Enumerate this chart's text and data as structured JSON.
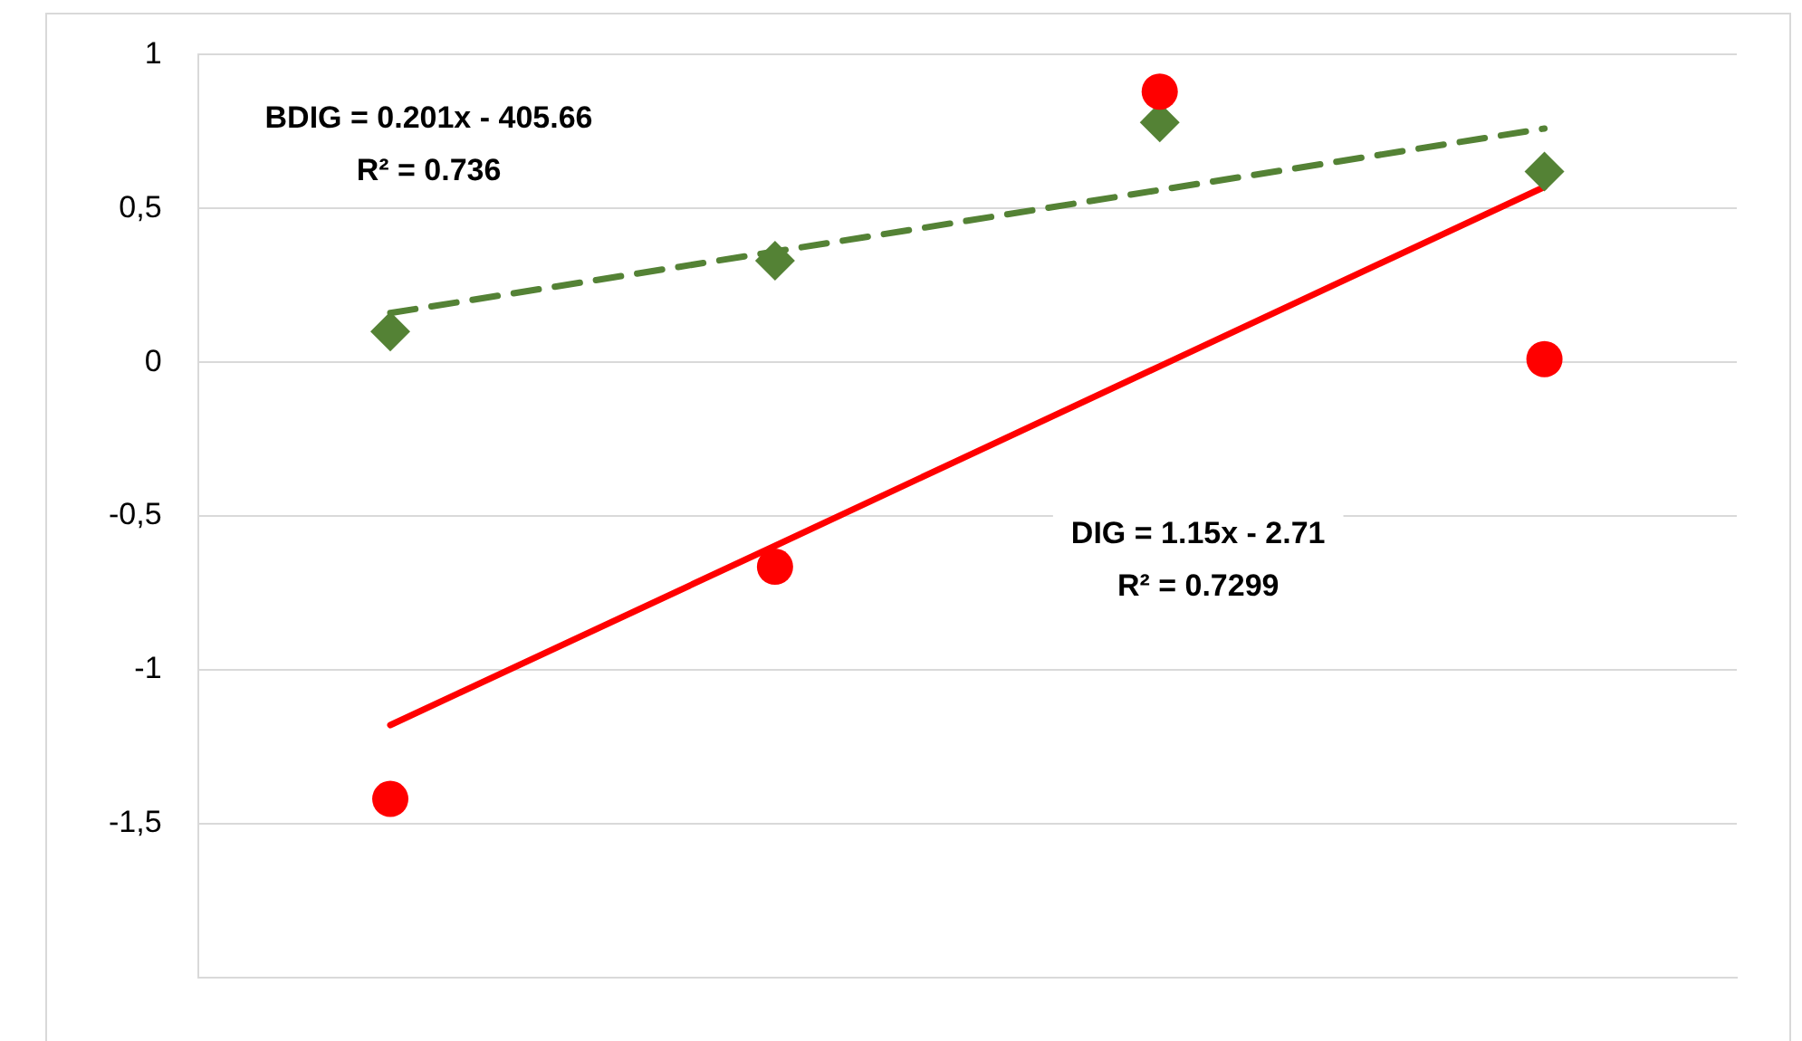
{
  "chart_data": {
    "type": "scatter",
    "categories": [
      null,
      null,
      null,
      null
    ],
    "ylim": [
      -2,
      1
    ],
    "yticks": [
      1,
      {
        "value": 0.5,
        "label": "0,5"
      },
      0,
      {
        "value": -0.5,
        "label": "-0,5"
      },
      -1,
      {
        "value": -1.5,
        "label": "-1,5"
      },
      {
        "value": -2,
        "label": null
      }
    ],
    "grid": "y",
    "legend": false,
    "series": [
      {
        "type": "line",
        "color": "#ff0000",
        "values": [
          -1.18,
          -0.597,
          -0.013,
          0.57
        ],
        "marker": "none",
        "line_style": "solid"
      },
      {
        "type": "line",
        "color": "#548235",
        "values": [
          0.16,
          0.36,
          0.56,
          0.76
        ],
        "marker": "none",
        "line_style": "dashed"
      },
      {
        "type": "scatter",
        "color": "#ff0000",
        "values": [
          -1.42,
          -0.665,
          0.88,
          0.01
        ],
        "marker": "circle"
      },
      {
        "type": "scatter",
        "color": "#548235",
        "values": [
          0.1,
          0.33,
          0.78,
          0.62
        ],
        "marker": "diamond"
      }
    ],
    "annotations": [
      "BDIG = 0.201x - 405.66\nR² = 0.736",
      "DIG = 1.15x - 2.71\nR² = 0.7299"
    ]
  }
}
